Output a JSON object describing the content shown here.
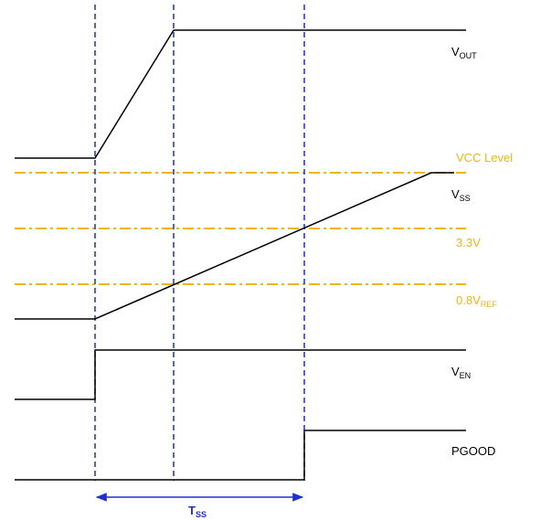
{
  "colors": {
    "signal": "#000000",
    "reference": "#f2b418",
    "timing": "#1f2fd0"
  },
  "signals": {
    "vout": {
      "main": "V",
      "sub": "OUT"
    },
    "vss": {
      "main": "V",
      "sub": "SS"
    },
    "ven": {
      "main": "V",
      "sub": "EN"
    },
    "pgood": {
      "main": "PGOOD",
      "sub": ""
    }
  },
  "references": {
    "vcc": {
      "main": "VCC Level",
      "sub": ""
    },
    "v33": {
      "main": "3.3V",
      "sub": ""
    },
    "vref": {
      "main": "0.8V",
      "sub": "REF"
    }
  },
  "timing": {
    "main": "T",
    "sub": "SS"
  }
}
